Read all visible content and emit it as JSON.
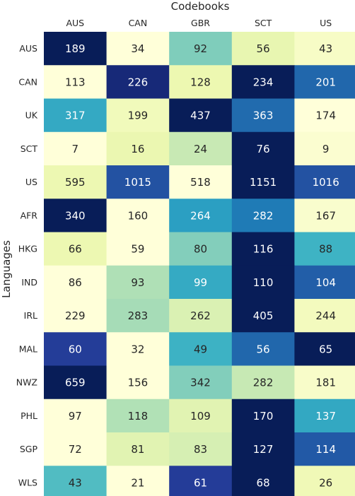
{
  "chart_data": {
    "type": "heatmap",
    "title": "",
    "xlabel": "Codebooks",
    "ylabel": "Languages",
    "columns": [
      "AUS",
      "CAN",
      "GBR",
      "SCT",
      "US"
    ],
    "rows": [
      "AUS",
      "CAN",
      "UK",
      "SCT",
      "US",
      "AFR",
      "HKG",
      "IND",
      "IRL",
      "MAL",
      "NWZ",
      "PHL",
      "SGP",
      "WLS"
    ],
    "values": [
      [
        189,
        34,
        92,
        56,
        43
      ],
      [
        113,
        226,
        128,
        234,
        201
      ],
      [
        317,
        199,
        437,
        363,
        174
      ],
      [
        7,
        16,
        24,
        76,
        9
      ],
      [
        595,
        1015,
        518,
        1151,
        1016
      ],
      [
        340,
        160,
        264,
        282,
        167
      ],
      [
        66,
        59,
        80,
        116,
        88
      ],
      [
        86,
        93,
        99,
        110,
        104
      ],
      [
        229,
        283,
        262,
        405,
        244
      ],
      [
        60,
        32,
        49,
        56,
        65
      ],
      [
        659,
        156,
        342,
        282,
        181
      ],
      [
        97,
        118,
        109,
        170,
        137
      ],
      [
        72,
        81,
        83,
        127,
        114
      ],
      [
        43,
        21,
        61,
        68,
        26
      ]
    ],
    "colormap": "YlGnBu",
    "normalization": "per-row",
    "grid": false,
    "legend": "none"
  }
}
